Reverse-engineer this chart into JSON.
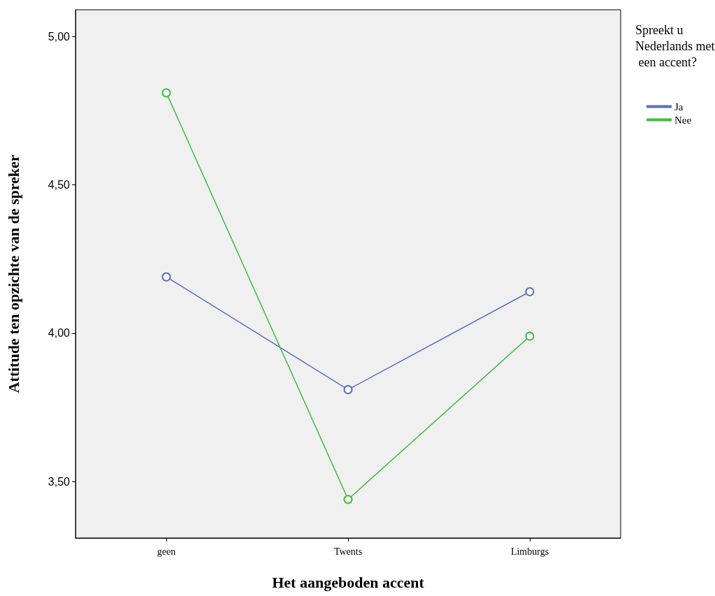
{
  "chart_data": {
    "type": "line",
    "xlabel": "Het aangeboden accent",
    "ylabel": "Attitude ten opzichte van de spreker",
    "legend_title": "Spreekt u Nederlands met een accent?",
    "categories": [
      "geen",
      "Twents",
      "Limburgs"
    ],
    "series": [
      {
        "name": "Ja",
        "color": "#5b6fc4",
        "values": [
          4.19,
          3.81,
          4.14
        ]
      },
      {
        "name": "Nee",
        "color": "#3cbf3c",
        "values": [
          4.81,
          3.44,
          3.99
        ]
      }
    ],
    "ylim": [
      3.31,
      5.09
    ],
    "yticks": [
      {
        "value": 3.5,
        "label": "3,50"
      },
      {
        "value": 4,
        "label": "4,00"
      },
      {
        "value": 4.5,
        "label": "4,50"
      },
      {
        "value": 5,
        "label": "5,00"
      }
    ],
    "grid": false,
    "legend": "right",
    "marker": "circle",
    "line_style": "solid"
  }
}
